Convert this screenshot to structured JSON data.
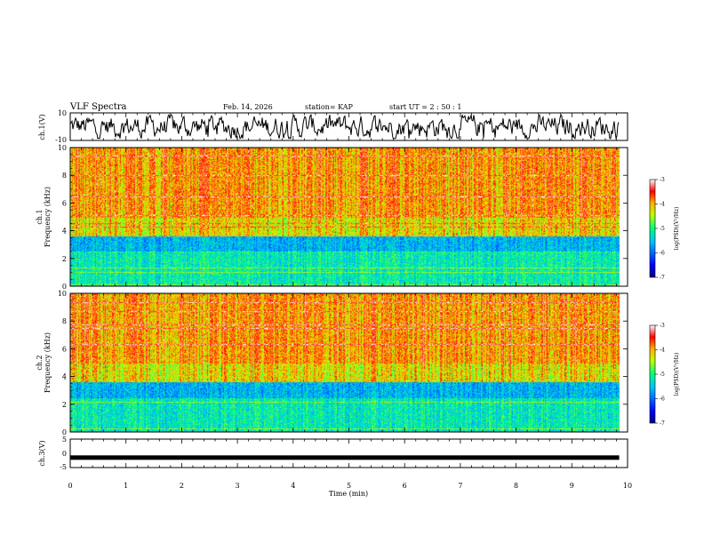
{
  "header": {
    "title": "VLF Spectra",
    "date": "Feb. 14, 2026",
    "station": "station= KAP",
    "start": "start  UT =   2  : 50 : 1"
  },
  "chart_data": {
    "type": "heatmap",
    "title": "VLF Spectra",
    "xlabel": "Time  (min)",
    "xlim": [
      0,
      10
    ],
    "x_ticks": [
      "0",
      "1",
      "2",
      "3",
      "4",
      "5",
      "6",
      "7",
      "8",
      "9",
      "10"
    ],
    "panels": [
      {
        "name": "ch1-waveform",
        "type": "line",
        "ylabel": "ch.1(V)",
        "ylim": [
          -10,
          10
        ],
        "y_ticks": [
          "10",
          "-10"
        ]
      },
      {
        "name": "ch1-spectrogram",
        "type": "heatmap",
        "ylabel_line1": "ch.1",
        "ylabel_line2": "Frequency  (kHz)",
        "ylim": [
          0,
          10
        ],
        "y_ticks": [
          "0",
          "2",
          "4",
          "6",
          "8",
          "10"
        ],
        "colorbar": {
          "label": "log(PSD)(V²/Hz)",
          "range": [
            -7,
            -3
          ],
          "ticks": [
            "-3",
            "-4",
            "-5",
            "-6",
            "-7"
          ]
        }
      },
      {
        "name": "ch2-spectrogram",
        "type": "heatmap",
        "ylabel_line1": "ch.2",
        "ylabel_line2": "Frequency  (kHz)",
        "ylim": [
          0,
          10
        ],
        "y_ticks": [
          "0",
          "2",
          "4",
          "6",
          "8",
          "10"
        ],
        "colorbar": {
          "label": "log(PSD)(V²/Hz)",
          "range": [
            -7,
            -3
          ],
          "ticks": [
            "-3",
            "-4",
            "-5",
            "-6",
            "-7"
          ]
        }
      },
      {
        "name": "ch3-waveform",
        "type": "line",
        "ylabel": "ch.3(V)",
        "ylim": [
          -5,
          5
        ],
        "y_ticks": [
          "5",
          "0",
          "-5"
        ],
        "constant_value": -1.5
      }
    ],
    "data_end_min": 9.85,
    "spectral_bands_khz": [
      {
        "from": 0,
        "to": 2.5,
        "level": -5.2
      },
      {
        "from": 2.5,
        "to": 3.6,
        "level": -5.6
      },
      {
        "from": 3.6,
        "to": 5.0,
        "level": -4.2
      },
      {
        "from": 5.0,
        "to": 10,
        "level": -3.9
      }
    ]
  }
}
